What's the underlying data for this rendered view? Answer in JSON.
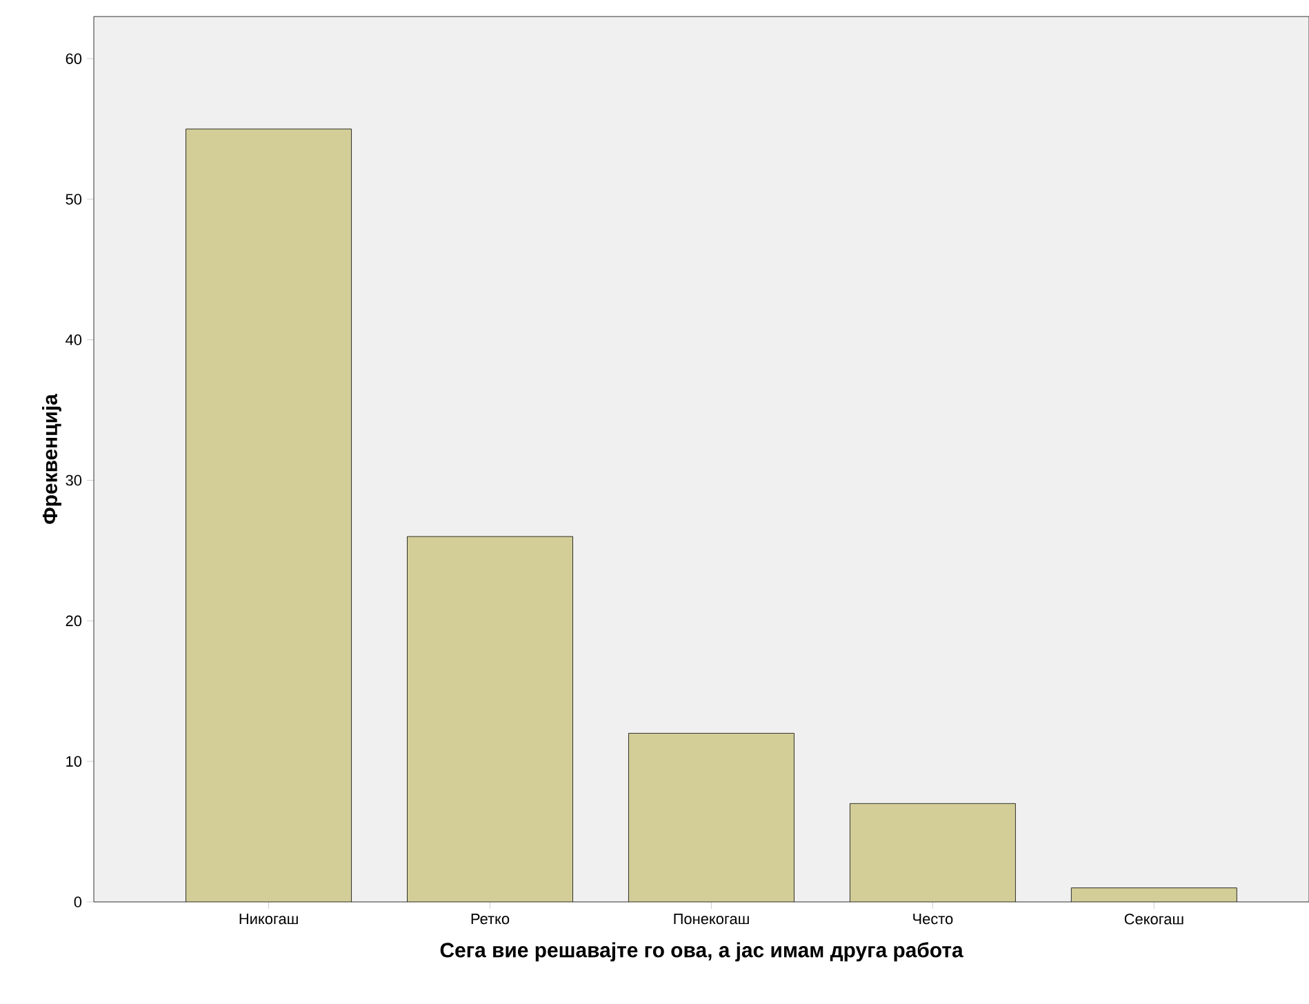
{
  "chart_data": {
    "type": "bar",
    "xlabel": "Сега вие решавајте го ова, а јас имам друга работа",
    "ylabel": "Фреквенција",
    "categories": [
      "Никогаш",
      "Ретко",
      "Понекогаш",
      "Често",
      "Секогаш"
    ],
    "values": [
      55,
      26,
      12,
      7,
      1
    ],
    "color": "#d3ce98",
    "ylim": [
      0,
      63
    ],
    "yticks": [
      0,
      10,
      20,
      30,
      40,
      50,
      60
    ],
    "grid": false
  }
}
